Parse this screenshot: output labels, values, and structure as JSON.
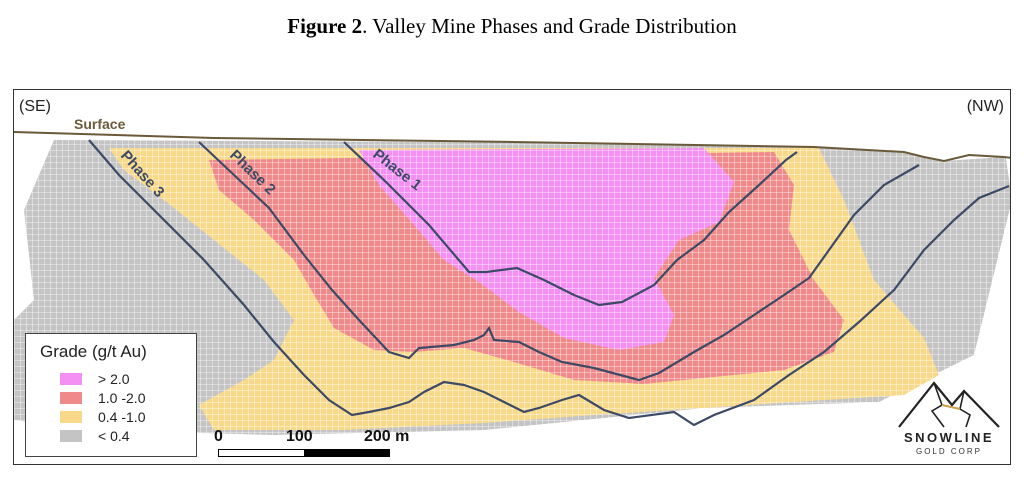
{
  "figure": {
    "title_bold": "Figure 2",
    "title_rest": ". Valley Mine Phases and Grade Distribution"
  },
  "section": {
    "direction_left": "(SE)",
    "direction_right": "(NW)",
    "surface_label": "Surface",
    "phase_labels": [
      "Phase 1",
      "Phase 2",
      "Phase 3"
    ]
  },
  "legend": {
    "title": "Grade (g/t Au)",
    "items": [
      {
        "label": "> 2.0",
        "color": "#f490f4"
      },
      {
        "label": "1.0 -2.0",
        "color": "#f08a8a"
      },
      {
        "label": "0.4 -1.0",
        "color": "#f8d98a"
      },
      {
        "label": "< 0.4",
        "color": "#c4c4c4"
      }
    ]
  },
  "scale": {
    "labels": [
      "0",
      "100",
      "200 m"
    ]
  },
  "logo": {
    "name": "SNOWLINE",
    "sub": "GOLD CORP"
  },
  "colors": {
    "surface_line": "#6b5a3a",
    "pit_line": "#3d4a66",
    "phase_text": "#3d4a66",
    "grid_line": "#ffffff"
  }
}
